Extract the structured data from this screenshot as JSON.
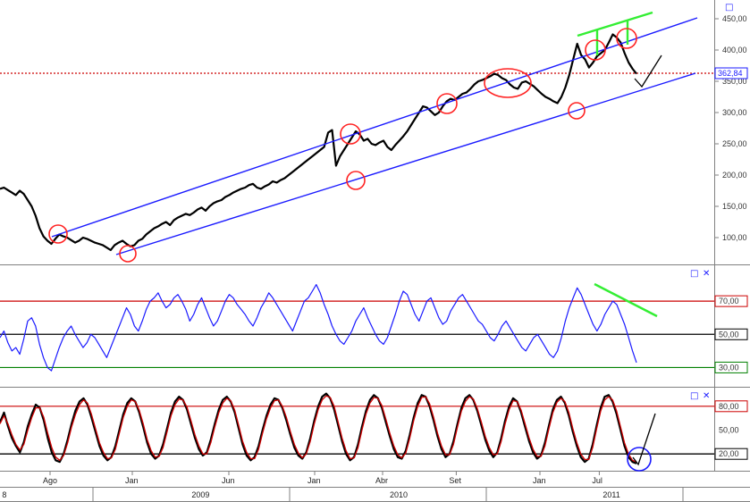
{
  "chart_data": [
    {
      "panel": "price",
      "type": "line",
      "y_scale": "linear",
      "ylim": [
        60,
        480
      ],
      "y_ticks": [
        "100,00",
        "150,00",
        "200,00",
        "250,00",
        "300,00",
        "350,00",
        "400,00",
        "450,00"
      ],
      "last_price_label": "362,84",
      "last_price_value": 362.84,
      "last_price_line_color": "#cc0000",
      "series_color": "#000000",
      "series": [
        {
          "values": [
            178,
            180,
            176,
            172,
            168,
            175,
            170,
            160,
            150,
            135,
            115,
            102,
            95,
            90,
            98,
            105,
            102,
            100,
            96,
            92,
            95,
            100,
            98,
            95,
            92,
            90,
            88,
            84,
            80,
            88,
            92,
            95,
            90,
            86,
            88,
            95,
            98,
            105,
            110,
            115,
            118,
            122,
            125,
            120,
            128,
            132,
            135,
            138,
            136,
            140,
            145,
            148,
            143,
            150,
            155,
            158,
            160,
            165,
            168,
            172,
            175,
            178,
            180,
            184,
            186,
            180,
            178,
            182,
            185,
            190,
            188,
            192,
            195,
            200,
            205,
            210,
            215,
            220,
            225,
            230,
            235,
            240,
            245,
            268,
            272,
            215,
            230,
            240,
            250,
            260,
            270,
            265,
            255,
            258,
            250,
            248,
            252,
            255,
            245,
            240,
            248,
            255,
            262,
            270,
            280,
            290,
            300,
            310,
            308,
            302,
            296,
            300,
            310,
            318,
            322,
            320,
            325,
            330,
            332,
            338,
            345,
            350,
            352,
            355,
            358,
            362,
            360,
            355,
            352,
            345,
            340,
            338,
            348,
            350,
            346,
            342,
            336,
            330,
            325,
            322,
            318,
            315,
            325,
            340,
            360,
            385,
            410,
            392,
            385,
            372,
            380,
            390,
            395,
            400,
            412,
            425,
            420,
            412,
            395,
            380,
            370,
            362
          ]
        }
      ]
    },
    {
      "panel": "rsi",
      "type": "line",
      "ylim": [
        20,
        90
      ],
      "y_ticks": [
        "30,00",
        "50,00",
        "70,00"
      ],
      "ref_lines": [
        {
          "value": 70,
          "color": "#cc0000"
        },
        {
          "value": 50,
          "color": "#000000"
        },
        {
          "value": 30,
          "color": "#008000"
        }
      ],
      "series_color": "#1a1aff",
      "series": [
        {
          "values": [
            48,
            52,
            45,
            40,
            42,
            38,
            47,
            58,
            60,
            55,
            44,
            36,
            30,
            28,
            35,
            42,
            48,
            52,
            55,
            50,
            46,
            42,
            45,
            50,
            48,
            44,
            40,
            36,
            42,
            48,
            54,
            60,
            66,
            62,
            55,
            52,
            58,
            65,
            70,
            72,
            75,
            70,
            66,
            68,
            72,
            74,
            70,
            65,
            58,
            62,
            68,
            72,
            66,
            60,
            55,
            58,
            64,
            70,
            74,
            72,
            68,
            65,
            62,
            58,
            55,
            60,
            66,
            70,
            75,
            72,
            68,
            64,
            60,
            56,
            52,
            58,
            64,
            70,
            72,
            76,
            80,
            75,
            68,
            62,
            55,
            50,
            46,
            44,
            48,
            52,
            58,
            62,
            66,
            60,
            55,
            50,
            46,
            44,
            48,
            55,
            62,
            70,
            76,
            74,
            68,
            62,
            58,
            64,
            70,
            72,
            66,
            60,
            56,
            58,
            64,
            68,
            72,
            74,
            70,
            66,
            62,
            58,
            56,
            52,
            48,
            46,
            50,
            55,
            58,
            54,
            50,
            46,
            42,
            40,
            44,
            48,
            50,
            46,
            42,
            38,
            36,
            40,
            48,
            58,
            66,
            72,
            78,
            74,
            68,
            62,
            56,
            52,
            56,
            62,
            66,
            70,
            68,
            62,
            56,
            48,
            40,
            33
          ]
        }
      ]
    },
    {
      "panel": "stochastic",
      "type": "line",
      "ylim": [
        0,
        100
      ],
      "y_ticks": [
        "20,00",
        "50,00",
        "80,00"
      ],
      "ref_lines": [
        {
          "value": 80,
          "color": "#cc0000"
        },
        {
          "value": 20,
          "color": "#000000"
        }
      ],
      "series": [
        {
          "color": "#000000",
          "values": [
            60,
            72,
            55,
            40,
            30,
            22,
            35,
            55,
            70,
            82,
            78,
            62,
            40,
            22,
            12,
            10,
            20,
            38,
            58,
            75,
            86,
            90,
            82,
            66,
            48,
            30,
            18,
            12,
            16,
            30,
            50,
            70,
            84,
            90,
            86,
            72,
            54,
            34,
            20,
            14,
            18,
            32,
            52,
            72,
            86,
            92,
            88,
            76,
            58,
            40,
            26,
            18,
            22,
            38,
            58,
            76,
            88,
            92,
            86,
            72,
            52,
            32,
            18,
            12,
            16,
            30,
            50,
            68,
            82,
            90,
            88,
            78,
            62,
            44,
            28,
            18,
            14,
            22,
            40,
            62,
            80,
            92,
            96,
            90,
            76,
            56,
            36,
            20,
            12,
            16,
            32,
            54,
            74,
            88,
            94,
            90,
            78,
            60,
            42,
            26,
            16,
            14,
            24,
            44,
            66,
            84,
            94,
            92,
            80,
            62,
            42,
            26,
            16,
            20,
            36,
            58,
            78,
            90,
            94,
            88,
            74,
            56,
            38,
            24,
            16,
            22,
            40,
            62,
            80,
            90,
            86,
            72,
            54,
            36,
            22,
            14,
            18,
            34,
            56,
            76,
            88,
            92,
            84,
            68,
            48,
            30,
            16,
            10,
            14,
            32,
            56,
            78,
            92,
            94,
            86,
            70,
            50,
            30,
            16,
            10,
            8
          ]
        },
        {
          "color": "#cc0000",
          "values": [
            58,
            68,
            58,
            44,
            32,
            25,
            32,
            50,
            66,
            78,
            78,
            66,
            46,
            28,
            16,
            12,
            18,
            34,
            54,
            70,
            82,
            88,
            84,
            70,
            52,
            34,
            22,
            14,
            15,
            26,
            46,
            66,
            80,
            88,
            86,
            75,
            58,
            38,
            24,
            16,
            17,
            28,
            48,
            68,
            82,
            89,
            88,
            79,
            62,
            44,
            30,
            20,
            20,
            34,
            54,
            72,
            84,
            90,
            87,
            75,
            56,
            36,
            22,
            14,
            14,
            26,
            46,
            64,
            78,
            87,
            88,
            80,
            66,
            48,
            32,
            21,
            15,
            20,
            36,
            58,
            76,
            88,
            93,
            91,
            80,
            60,
            40,
            24,
            14,
            15,
            28,
            50,
            70,
            84,
            91,
            90,
            81,
            64,
            46,
            30,
            19,
            15,
            21,
            40,
            62,
            80,
            91,
            92,
            83,
            66,
            46,
            30,
            19,
            19,
            32,
            54,
            74,
            86,
            92,
            89,
            77,
            60,
            42,
            28,
            19,
            20,
            36,
            58,
            76,
            87,
            86,
            75,
            58,
            40,
            26,
            17,
            17,
            30,
            52,
            72,
            85,
            90,
            86,
            72,
            52,
            34,
            20,
            13,
            13,
            28,
            52,
            74,
            88,
            92,
            88,
            74,
            54,
            34,
            20,
            12,
            10
          ]
        }
      ]
    }
  ],
  "x_axis": {
    "months": [
      {
        "label": "Ago",
        "pos": 0.07
      },
      {
        "label": "Jan",
        "pos": 0.185
      },
      {
        "label": "Jun",
        "pos": 0.32
      },
      {
        "label": "Jan",
        "pos": 0.44
      },
      {
        "label": "Abr",
        "pos": 0.535
      },
      {
        "label": "Set",
        "pos": 0.638
      },
      {
        "label": "Jan",
        "pos": 0.755
      },
      {
        "label": "Jul",
        "pos": 0.838
      }
    ],
    "years": [
      {
        "label": "8",
        "pos": 0.003
      },
      {
        "label": "2009",
        "pos": 0.268
      },
      {
        "label": "2010",
        "pos": 0.545
      },
      {
        "label": "2011",
        "pos": 0.843
      }
    ]
  },
  "controls": {
    "maximize_symbol": "□",
    "close_symbol": "✕"
  }
}
